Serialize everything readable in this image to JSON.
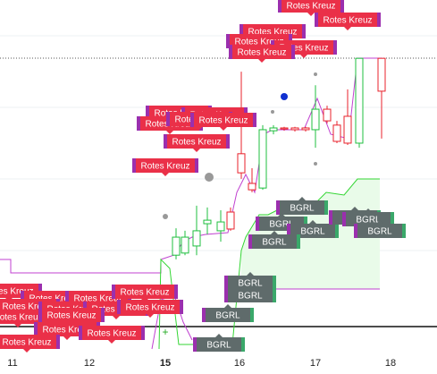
{
  "chart_data": {
    "type": "candlestick",
    "xticks": [
      "11",
      "12",
      "15",
      "16",
      "17",
      "18"
    ],
    "ylim": [
      0,
      100
    ],
    "up_color": "#1fbf3f",
    "down_color": "#e8222b",
    "open": [
      27.8,
      28.4,
      30.4,
      36.7,
      34.7,
      40.0,
      56.5,
      48.1,
      46.8,
      63.0,
      63.8,
      63.8,
      63.8,
      63.3,
      69.1,
      64.6,
      67.1,
      59.5,
      83.5
    ],
    "high": [
      35.4,
      34.7,
      41.8,
      41.3,
      40.5,
      41.3,
      79.7,
      52.4,
      64.6,
      64.6,
      64.1,
      64.1,
      64.1,
      75.9,
      70.1,
      65.8,
      74.7,
      83.5,
      83.5
    ],
    "low": [
      26.6,
      27.8,
      27.8,
      33.7,
      31.6,
      34.7,
      49.4,
      45.6,
      46.3,
      62.0,
      63.0,
      62.8,
      62.8,
      58.2,
      65.1,
      59.5,
      59.0,
      58.2,
      60.8
    ],
    "close": [
      32.9,
      32.9,
      34.7,
      37.7,
      37.2,
      35.2,
      51.1,
      46.3,
      63.3,
      63.8,
      63.5,
      63.3,
      63.3,
      69.1,
      65.8,
      60.0,
      59.5,
      83.5,
      74.2
    ],
    "annotations": [
      {
        "text": "Rotes Kreuz"
      },
      {
        "text": "Rotes Kreuz"
      },
      {
        "text": "Rotes Kreuz"
      },
      {
        "text": "Rotes Kreuz"
      },
      {
        "text": "Rotes Kreuz"
      },
      {
        "text": "Rotes Kreuz"
      },
      {
        "text": "Rotes Kreuz"
      },
      {
        "text": "Rotes Kreuz"
      },
      {
        "text": "Rotes Kreuz"
      },
      {
        "text": "Rotes Kreuz"
      },
      {
        "text": "Rotes Kreuz"
      },
      {
        "text": "Rotes Kreuz"
      },
      {
        "text": "Rotes Kreuz"
      },
      {
        "text": "Rotes Kreuz"
      },
      {
        "text": "Rotes Kreuz"
      },
      {
        "text": "Rotes Kreuz"
      },
      {
        "text": "Rotes Kreuz"
      },
      {
        "text": "Rotes Kreuz"
      },
      {
        "text": "Rotes Kreuz"
      },
      {
        "text": "Rotes Kreuz"
      },
      {
        "text": "Rotes Kreuz"
      },
      {
        "text": "Rotes Kreuz"
      },
      {
        "text": "Rotes Kreuz"
      },
      {
        "text": "Rotes Kreuz"
      },
      {
        "text": "Rotes Kreuz"
      },
      {
        "text": "Rotes Kreuz"
      },
      {
        "text": "BGRL"
      },
      {
        "text": "BGRL"
      },
      {
        "text": "BGRL"
      },
      {
        "text": "BGRL"
      },
      {
        "text": "BGRL"
      },
      {
        "text": "BGRL"
      },
      {
        "text": "BGRL"
      },
      {
        "text": "BGRL"
      },
      {
        "text": "BGRL"
      },
      {
        "text": "BGRL"
      },
      {
        "text": "BGRL"
      }
    ]
  }
}
